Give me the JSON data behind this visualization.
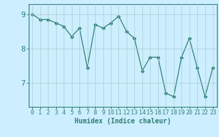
{
  "x": [
    0,
    1,
    2,
    3,
    4,
    5,
    6,
    7,
    8,
    9,
    10,
    11,
    12,
    13,
    14,
    15,
    16,
    17,
    18,
    19,
    20,
    21,
    22,
    23
  ],
  "y": [
    9.0,
    8.85,
    8.85,
    8.75,
    8.65,
    8.35,
    8.6,
    7.45,
    8.7,
    8.6,
    8.75,
    8.95,
    8.5,
    8.3,
    7.35,
    7.75,
    7.75,
    6.7,
    6.6,
    7.75,
    8.3,
    7.45,
    6.6,
    7.45
  ],
  "line_color": "#2e7d72",
  "marker": "D",
  "marker_size": 2.5,
  "bg_color": "#cceeff",
  "grid_color": "#aacccc",
  "xlabel": "Humidex (Indice chaleur)",
  "xlim": [
    -0.5,
    23.5
  ],
  "ylim": [
    6.3,
    9.3
  ],
  "yticks": [
    7,
    8,
    9
  ],
  "xticks": [
    0,
    1,
    2,
    3,
    4,
    5,
    6,
    7,
    8,
    9,
    10,
    11,
    12,
    13,
    14,
    15,
    16,
    17,
    18,
    19,
    20,
    21,
    22,
    23
  ],
  "tick_color": "#2e7d72",
  "label_color": "#2e7d72",
  "spine_color": "#2e7d72",
  "font_size": 6,
  "xlabel_fontsize": 7,
  "ytick_fontsize": 8
}
